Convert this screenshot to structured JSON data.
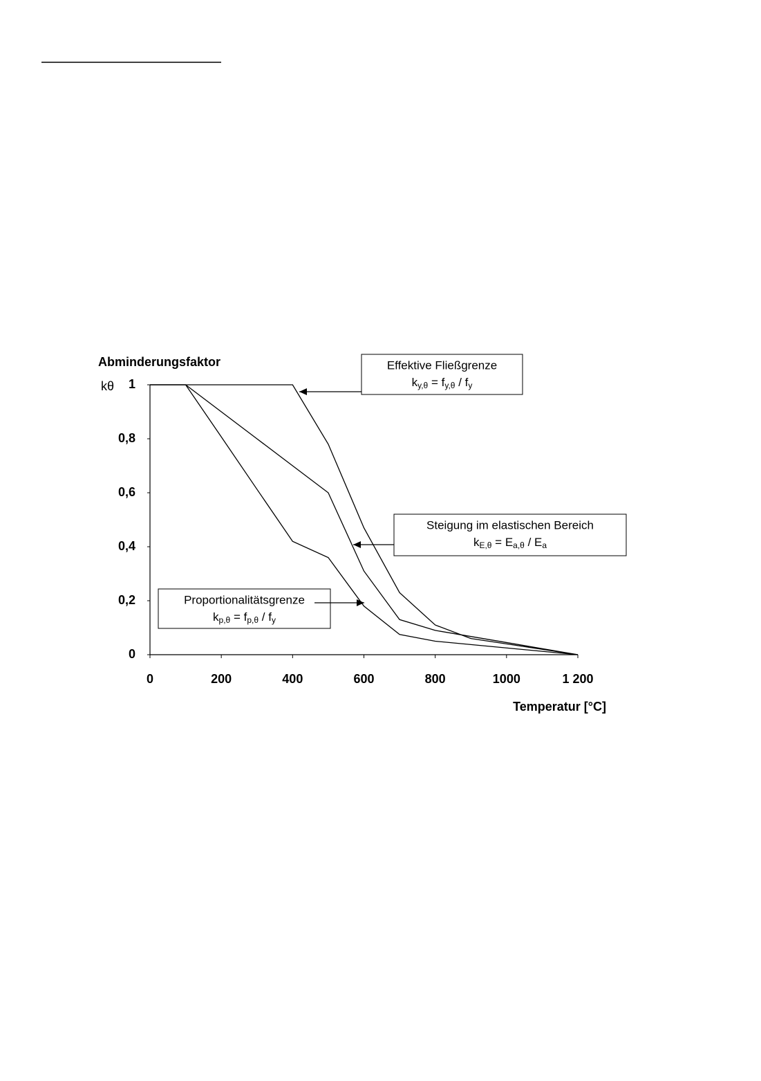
{
  "chart_data": {
    "type": "line",
    "y_label_lines": [
      "Abminderungsfaktor",
      "kθ"
    ],
    "x_label": "Temperatur [°C]",
    "x": [
      0,
      100,
      200,
      300,
      400,
      500,
      600,
      700,
      800,
      900,
      1000,
      1100,
      1200
    ],
    "series": [
      {
        "name": "Effektive Fließgrenze",
        "formula": [
          "k",
          "y,θ",
          " = f",
          "y,θ",
          " / f",
          "y"
        ],
        "color": "#000000",
        "values": [
          1,
          1,
          1,
          1,
          1,
          0.78,
          0.47,
          0.23,
          0.11,
          0.06,
          0.04,
          0.02,
          0
        ]
      },
      {
        "name": "Steigung im elastischen Bereich",
        "formula": [
          "k",
          "E,θ",
          " = E",
          "a,θ",
          " / E",
          "a"
        ],
        "color": "#000000",
        "values": [
          1,
          1,
          0.9,
          0.8,
          0.7,
          0.6,
          0.31,
          0.13,
          0.09,
          0.0675,
          0.045,
          0.0225,
          0
        ]
      },
      {
        "name": "Proportionalitätsgrenze",
        "formula": [
          "k",
          "p,θ",
          " = f",
          "p,θ",
          " / f",
          "y"
        ],
        "color": "#000000",
        "values": [
          1,
          1,
          0.807,
          0.613,
          0.42,
          0.36,
          0.18,
          0.075,
          0.05,
          0.0375,
          0.025,
          0.0125,
          0
        ]
      }
    ],
    "xlim": [
      0,
      1200
    ],
    "xticks": [
      0,
      200,
      400,
      600,
      800,
      1000,
      {
        "value": 1200,
        "label": "1 200"
      }
    ],
    "ylim": [
      0,
      1
    ],
    "yticks": [
      0,
      {
        "value": 0.2,
        "label": "0,2"
      },
      {
        "value": 0.4,
        "label": "0,4"
      },
      {
        "value": 0.6,
        "label": "0,6"
      },
      {
        "value": 0.8,
        "label": "0,8"
      },
      1
    ],
    "grid": false
  }
}
